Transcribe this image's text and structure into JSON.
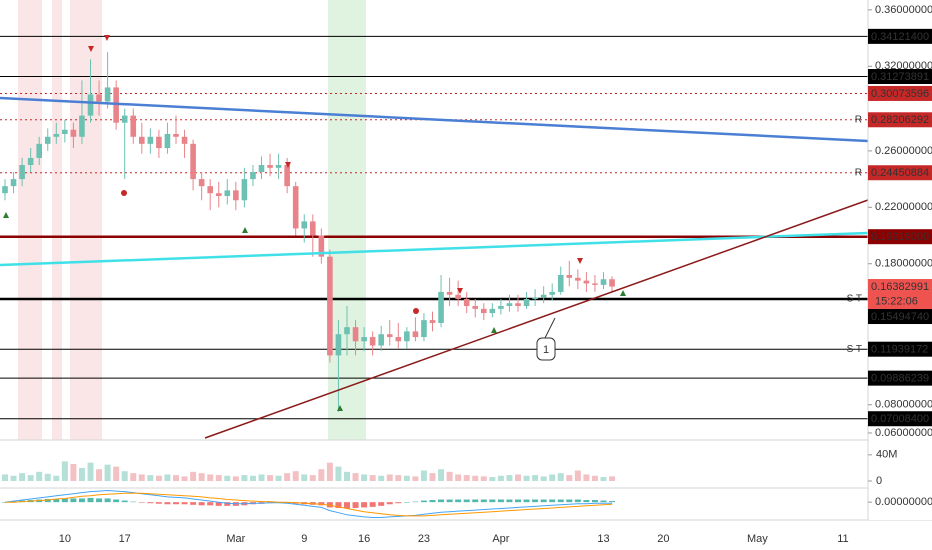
{
  "chart_data": {
    "type": "candlestick",
    "categories": [
      null,
      null,
      null,
      null,
      null,
      null,
      null,
      "10",
      null,
      null,
      null,
      null,
      null,
      null,
      "17",
      null,
      null,
      null,
      null,
      null,
      null,
      null,
      null,
      null,
      null,
      null,
      null,
      "Mar",
      null,
      null,
      null,
      null,
      null,
      null,
      null,
      "9",
      null,
      null,
      null,
      null,
      null,
      null,
      "16",
      null,
      null,
      null,
      null,
      null,
      null,
      "23",
      null,
      null,
      null,
      null,
      null,
      null,
      null,
      null,
      "Apr",
      null,
      null,
      null,
      null,
      null,
      null,
      null,
      null,
      null,
      null,
      null,
      "13",
      null,
      null,
      null,
      null,
      null,
      null,
      "20",
      null,
      null,
      null,
      null,
      null,
      null,
      null,
      null,
      null,
      null,
      "May",
      null,
      null,
      null,
      null,
      null,
      null,
      null,
      null,
      null,
      "11",
      null,
      null
    ],
    "open": [
      0.23,
      0.235,
      0.24,
      0.25,
      0.255,
      0.265,
      0.27,
      0.272,
      0.275,
      0.27,
      0.285,
      0.3,
      0.295,
      0.305,
      0.28,
      0.285,
      0.27,
      0.265,
      0.27,
      0.262,
      0.272,
      0.27,
      0.265,
      0.24,
      0.235,
      0.23,
      0.228,
      0.232,
      0.225,
      0.24,
      0.245,
      0.25,
      0.248,
      0.25,
      0.235,
      0.205,
      0.21,
      0.2,
      0.185,
      0.115,
      0.13,
      0.135,
      0.125,
      0.128,
      0.122,
      0.13,
      0.128,
      0.125,
      0.132,
      0.128,
      0.14,
      0.138,
      0.16,
      0.158,
      0.155,
      0.15,
      0.148,
      0.145,
      0.148,
      0.15,
      0.152,
      0.15,
      0.155,
      0.156,
      0.158,
      0.16,
      0.172,
      0.17,
      0.168,
      0.166,
      0.165,
      0.169,
      null,
      null,
      null,
      null,
      null,
      null,
      null,
      null,
      null,
      null,
      null,
      null,
      null,
      null,
      null,
      null,
      null,
      null,
      null,
      null,
      null,
      null,
      null,
      null,
      null,
      null,
      null,
      null,
      null
    ],
    "high": [
      0.24,
      0.245,
      0.255,
      0.262,
      0.27,
      0.276,
      0.28,
      0.282,
      0.28,
      0.31,
      0.325,
      0.31,
      0.33,
      0.31,
      0.29,
      0.29,
      0.28,
      0.276,
      0.275,
      0.28,
      0.285,
      0.275,
      0.268,
      0.245,
      0.24,
      0.238,
      0.24,
      0.238,
      0.248,
      0.25,
      0.256,
      0.258,
      0.258,
      0.255,
      0.238,
      0.215,
      0.215,
      0.205,
      0.19,
      0.14,
      0.15,
      0.14,
      0.135,
      0.132,
      0.136,
      0.14,
      0.138,
      0.135,
      0.142,
      0.145,
      0.146,
      0.172,
      0.17,
      0.168,
      0.16,
      0.155,
      0.152,
      0.152,
      0.155,
      0.158,
      0.158,
      0.16,
      0.162,
      0.164,
      0.166,
      0.178,
      0.182,
      0.176,
      0.174,
      0.172,
      0.174,
      0.171,
      null,
      null,
      null,
      null,
      null,
      null,
      null,
      null,
      null,
      null,
      null,
      null,
      null,
      null,
      null,
      null,
      null,
      null,
      null,
      null,
      null,
      null,
      null,
      null,
      null,
      null,
      null,
      null,
      null
    ],
    "low": [
      0.225,
      0.23,
      0.235,
      0.245,
      0.25,
      0.26,
      0.265,
      0.266,
      0.262,
      0.265,
      0.28,
      0.285,
      0.29,
      0.275,
      0.24,
      0.265,
      0.258,
      0.258,
      0.255,
      0.258,
      0.265,
      0.255,
      0.232,
      0.225,
      0.218,
      0.22,
      0.222,
      0.218,
      0.22,
      0.235,
      0.24,
      0.242,
      0.24,
      0.23,
      0.2,
      0.195,
      0.185,
      0.18,
      0.11,
      0.075,
      0.115,
      0.115,
      0.118,
      0.115,
      0.118,
      0.122,
      0.12,
      0.12,
      0.125,
      0.125,
      0.132,
      0.135,
      0.15,
      0.15,
      0.145,
      0.142,
      0.14,
      0.142,
      0.144,
      0.146,
      0.146,
      0.148,
      0.15,
      0.152,
      0.154,
      0.158,
      0.164,
      0.162,
      0.16,
      0.16,
      0.162,
      0.16,
      null,
      null,
      null,
      null,
      null,
      null,
      null,
      null,
      null,
      null,
      null,
      null,
      null,
      null,
      null,
      null,
      null,
      null,
      null,
      null,
      null,
      null,
      null,
      null,
      null,
      null,
      null,
      null,
      null
    ],
    "close": [
      0.235,
      0.24,
      0.25,
      0.255,
      0.265,
      0.27,
      0.272,
      0.275,
      0.27,
      0.285,
      0.3,
      0.295,
      0.305,
      0.28,
      0.285,
      0.27,
      0.265,
      0.27,
      0.262,
      0.272,
      0.27,
      0.265,
      0.24,
      0.235,
      0.23,
      0.228,
      0.232,
      0.225,
      0.24,
      0.245,
      0.25,
      0.248,
      0.25,
      0.235,
      0.205,
      0.21,
      0.2,
      0.185,
      0.115,
      0.13,
      0.135,
      0.125,
      0.128,
      0.122,
      0.13,
      0.128,
      0.125,
      0.132,
      0.128,
      0.14,
      0.138,
      0.16,
      0.158,
      0.155,
      0.15,
      0.148,
      0.145,
      0.148,
      0.15,
      0.152,
      0.15,
      0.155,
      0.156,
      0.158,
      0.16,
      0.172,
      0.17,
      0.168,
      0.166,
      0.165,
      0.169,
      0.1638,
      null,
      null,
      null,
      null,
      null,
      null,
      null,
      null,
      null,
      null,
      null,
      null,
      null,
      null,
      null,
      null,
      null,
      null,
      null,
      null,
      null,
      null,
      null,
      null,
      null,
      null,
      null,
      null,
      null
    ],
    "colors": {
      "up": "#6cc1b2",
      "down": "#e8838a"
    },
    "ylim": [
      0.055,
      0.367
    ],
    "yticks": [
      {
        "value": 0.36,
        "label": "0.36000000"
      },
      {
        "value": 0.32,
        "label": "0.32000000"
      },
      {
        "value": 0.26,
        "label": "0.26000000"
      },
      {
        "value": 0.22,
        "label": "0.22000000"
      },
      {
        "value": 0.18,
        "label": "0.18000000"
      },
      {
        "value": 0.08,
        "label": "0.08000000"
      },
      {
        "value": 0.06,
        "label": "0.06000000"
      }
    ],
    "levels": [
      {
        "value": 0.341214,
        "label": "0.34121400",
        "color": "#000000",
        "style": "solid"
      },
      {
        "value": 0.31273891,
        "label": "0.31273891",
        "color": "#000000",
        "style": "solid"
      },
      {
        "value": 0.30073596,
        "label": "0.30073596",
        "color": "#c62828",
        "style": "dotted"
      },
      {
        "value": 0.28206292,
        "label": "0.28206292",
        "color": "#c62828",
        "style": "dotted",
        "tag": "R"
      },
      {
        "value": 0.24450884,
        "label": "0.24450884",
        "color": "#c62828",
        "style": "dotted",
        "tag": "R"
      },
      {
        "value": 0.19916,
        "label": "0.19916000",
        "color": "#8b0000",
        "style": "thick"
      },
      {
        "value": 0.1549474,
        "label": "0.15494740",
        "color": "#000000",
        "style": "thick",
        "tag": "S T"
      },
      {
        "value": 0.11939172,
        "label": "0.11939172",
        "color": "#000000",
        "style": "solid",
        "tag": "S T"
      },
      {
        "value": 0.09886239,
        "label": "0.09886239",
        "color": "#000000",
        "style": "solid"
      },
      {
        "value": 0.070084,
        "label": "0.07008400",
        "color": "#000000",
        "style": "solid"
      }
    ],
    "last_price": {
      "value": 0.16382991,
      "label": "0.16382991",
      "countdown": "15:22:06",
      "color": "#ef5350"
    },
    "callout": "1",
    "volume": {
      "values": [
        10,
        8,
        12,
        9,
        14,
        11,
        8,
        30,
        26,
        20,
        28,
        18,
        25,
        22,
        15,
        12,
        10,
        9,
        8,
        10,
        9,
        7,
        14,
        12,
        10,
        9,
        8,
        7,
        9,
        8,
        10,
        9,
        8,
        12,
        15,
        10,
        9,
        18,
        28,
        22,
        14,
        12,
        10,
        9,
        8,
        10,
        9,
        8,
        7,
        16,
        12,
        18,
        14,
        10,
        9,
        8,
        7,
        6,
        8,
        9,
        10,
        8,
        9,
        7,
        10,
        12,
        9,
        16,
        10,
        8,
        6,
        7,
        null,
        null,
        null,
        null,
        null,
        null,
        null,
        null,
        null,
        null,
        null,
        null,
        null,
        null,
        null,
        null,
        null,
        null,
        null,
        null,
        null,
        null,
        null,
        null,
        null,
        null,
        null,
        null,
        null
      ],
      "ylim": [
        0,
        55
      ],
      "yticks": [
        {
          "value": 40,
          "label": "40M"
        },
        0
      ]
    },
    "macd": {
      "macd": [
        0,
        0.002,
        0.004,
        0.006,
        0.008,
        0.01,
        0.012,
        0.014,
        0.016,
        0.018,
        0.02,
        0.021,
        0.022,
        0.021,
        0.02,
        0.018,
        0.016,
        0.014,
        0.012,
        0.01,
        0.009,
        0.008,
        0.006,
        0.004,
        0.002,
        0,
        -0.002,
        -0.003,
        -0.003,
        -0.002,
        -0.002,
        -0.001,
        -0.001,
        -0.002,
        -0.004,
        -0.006,
        -0.008,
        -0.01,
        -0.016,
        -0.02,
        -0.024,
        -0.026,
        -0.028,
        -0.029,
        -0.029,
        -0.028,
        -0.027,
        -0.026,
        -0.025,
        -0.023,
        -0.021,
        -0.019,
        -0.018,
        -0.017,
        -0.016,
        -0.015,
        -0.014,
        -0.013,
        -0.012,
        -0.011,
        -0.01,
        -0.009,
        -0.008,
        -0.007,
        -0.006,
        -0.005,
        -0.004,
        -0.003,
        -0.003,
        -0.002,
        -0.002,
        -0.002,
        null,
        null,
        null,
        null,
        null,
        null,
        null,
        null,
        null,
        null,
        null,
        null,
        null,
        null,
        null,
        null,
        null,
        null,
        null,
        null,
        null,
        null,
        null,
        null,
        null,
        null,
        null,
        null,
        null
      ],
      "signal": [
        0,
        0,
        0.001,
        0.002,
        0.003,
        0.004,
        0.006,
        0.007,
        0.009,
        0.011,
        0.012,
        0.014,
        0.015,
        0.016,
        0.017,
        0.017,
        0.017,
        0.016,
        0.015,
        0.014,
        0.013,
        0.012,
        0.011,
        0.01,
        0.008,
        0.007,
        0.005,
        0.004,
        0.003,
        0.002,
        0.001,
        0.001,
        0,
        0,
        -0.001,
        -0.002,
        -0.003,
        -0.004,
        -0.006,
        -0.009,
        -0.012,
        -0.015,
        -0.018,
        -0.02,
        -0.022,
        -0.024,
        -0.025,
        -0.026,
        -0.026,
        -0.026,
        -0.025,
        -0.024,
        -0.023,
        -0.022,
        -0.021,
        -0.02,
        -0.019,
        -0.018,
        -0.017,
        -0.016,
        -0.015,
        -0.014,
        -0.013,
        -0.012,
        -0.011,
        -0.01,
        -0.009,
        -0.008,
        -0.007,
        -0.006,
        -0.005,
        -0.004,
        null,
        null,
        null,
        null,
        null,
        null,
        null,
        null,
        null,
        null,
        null,
        null,
        null,
        null,
        null,
        null,
        null,
        null,
        null,
        null,
        null,
        null,
        null,
        null,
        null,
        null,
        null,
        null,
        null
      ],
      "histogram": [
        0,
        0.002,
        0.003,
        0.004,
        0.005,
        0.006,
        0.006,
        0.007,
        0.007,
        0.007,
        0.008,
        0.007,
        0.007,
        0.005,
        0.003,
        0.001,
        -0.001,
        -0.002,
        -0.003,
        -0.004,
        -0.004,
        -0.004,
        -0.005,
        -0.006,
        -0.006,
        -0.007,
        -0.007,
        -0.007,
        -0.006,
        -0.004,
        -0.003,
        -0.002,
        -0.001,
        -0.002,
        -0.003,
        -0.004,
        -0.005,
        -0.006,
        -0.01,
        -0.011,
        -0.012,
        -0.011,
        -0.01,
        -0.009,
        -0.007,
        -0.004,
        -0.002,
        0,
        0.001,
        0.003,
        0.004,
        0.005,
        0.005,
        0.005,
        0.005,
        0.005,
        0.005,
        0.005,
        0.005,
        0.005,
        0.005,
        0.005,
        0.005,
        0.005,
        0.005,
        0.005,
        0.005,
        0.005,
        0.004,
        0.004,
        0.003,
        0.002,
        null,
        null,
        null,
        null,
        null,
        null,
        null,
        null,
        null,
        null,
        null,
        null,
        null,
        null,
        null,
        null,
        null,
        null,
        null,
        null,
        null,
        null,
        null,
        null,
        null,
        null,
        null,
        null,
        null
      ],
      "colors": {
        "macd": "#42a5f5",
        "signal": "#ff9800",
        "up": "#26a69a",
        "down": "#ef5350"
      },
      "ylim": [
        -0.03,
        0.023
      ],
      "yticks": [
        {
          "value": 0,
          "label": "0.00000000"
        }
      ]
    }
  }
}
